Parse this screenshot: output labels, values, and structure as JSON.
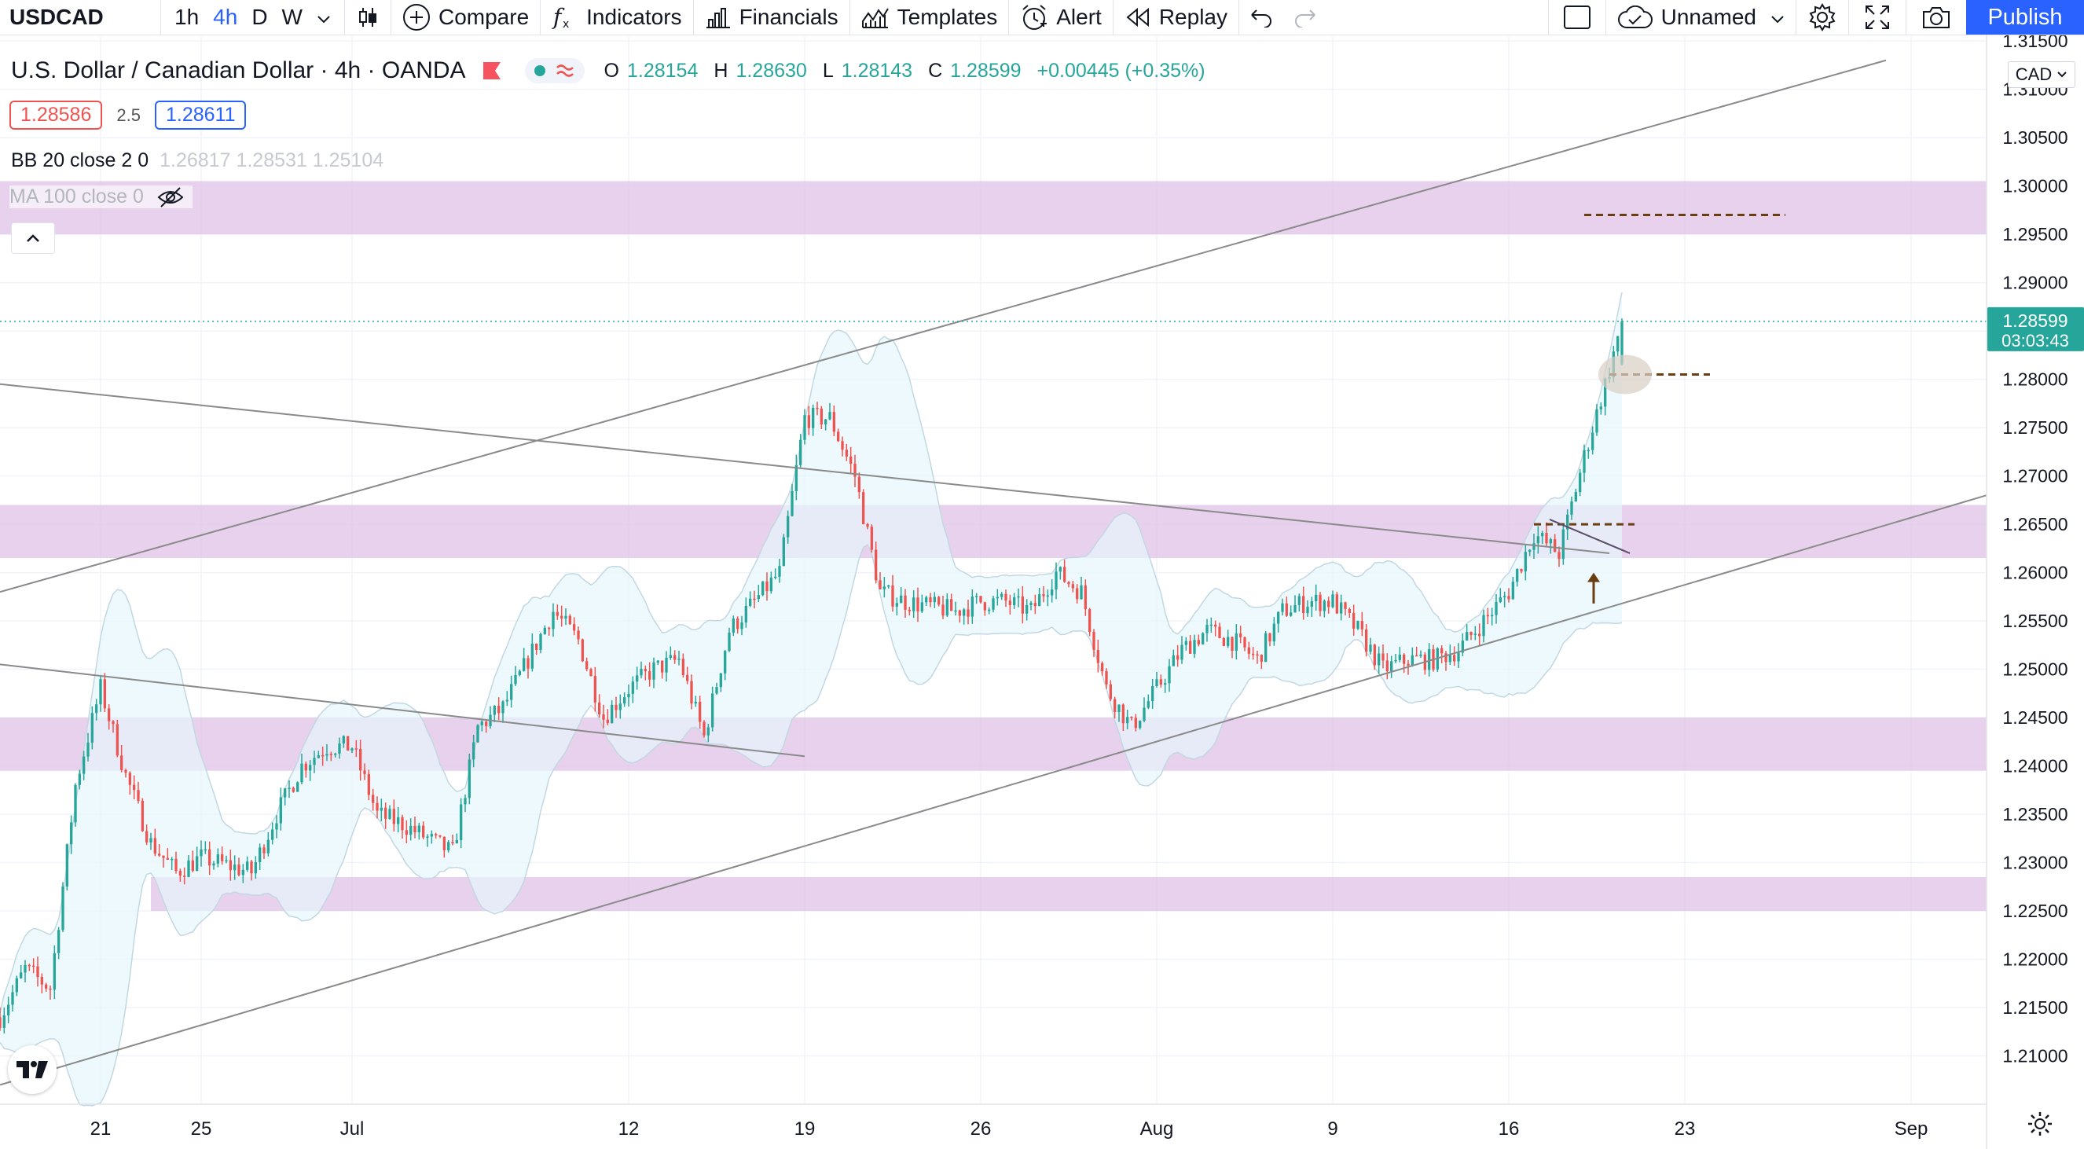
{
  "toolbar": {
    "symbol": "USDCAD",
    "timeframes": [
      "1h",
      "4h",
      "D",
      "W"
    ],
    "active_timeframe": "4h",
    "compare_label": "Compare",
    "indicators_label": "Indicators",
    "financials_label": "Financials",
    "templates_label": "Templates",
    "alert_label": "Alert",
    "replay_label": "Replay",
    "layout_name": "Unnamed",
    "publish_label": "Publish"
  },
  "legend": {
    "title": "U.S. Dollar / Canadian Dollar · 4h · OANDA",
    "ohlc": {
      "o_label": "O",
      "o": "1.28154",
      "h_label": "H",
      "h": "1.28630",
      "l_label": "L",
      "l": "1.28143",
      "c_label": "C",
      "c": "1.28599",
      "change": "+0.00445 (+0.35%)"
    },
    "bid": "1.28586",
    "spread": "2.5",
    "ask": "1.28611",
    "bb_label": "BB 20 close 2 0",
    "bb_values": "1.26817  1.28531  1.25104",
    "ma_label": "MA 100 close 0"
  },
  "price_axis": {
    "currency": "CAD",
    "last_price": "1.28599",
    "countdown": "03:03:43"
  },
  "colors": {
    "up": "#26a69a",
    "down": "#ef5350",
    "zone": "#e1c6e9",
    "trendline": "#8a8a8a",
    "level": "#6b3e12",
    "bb_fill": "#e6f7fb",
    "bb_line": "#c3d7e2",
    "accent": "#2962ff"
  },
  "icons": [
    "candles-icon",
    "compare-plus-icon",
    "fx-icon",
    "financials-icon",
    "templates-icon",
    "alert-icon",
    "replay-icon",
    "undo-icon",
    "redo-icon",
    "layout-icon",
    "cloud-icon",
    "settings-icon",
    "fullscreen-icon",
    "camera-icon",
    "eye-crossed-icon",
    "chevron-up-icon",
    "tradingview-logo-icon"
  ],
  "chart_data": {
    "type": "candlestick",
    "symbol": "USDCAD",
    "interval": "4h",
    "x_range": [
      "2021-06-17",
      "2021-09-04"
    ],
    "x_ticks": [
      {
        "label": "21",
        "date": "2021-06-21"
      },
      {
        "label": "25",
        "date": "2021-06-25"
      },
      {
        "label": "Jul",
        "date": "2021-07-01"
      },
      {
        "label": "12",
        "date": "2021-07-12"
      },
      {
        "label": "19",
        "date": "2021-07-19"
      },
      {
        "label": "26",
        "date": "2021-07-26"
      },
      {
        "label": "Aug",
        "date": "2021-08-02"
      },
      {
        "label": "9",
        "date": "2021-08-09"
      },
      {
        "label": "16",
        "date": "2021-08-16"
      },
      {
        "label": "23",
        "date": "2021-08-23"
      },
      {
        "label": "Sep",
        "date": "2021-09-01"
      }
    ],
    "y_range": [
      1.205,
      1.3155
    ],
    "y_ticks": [
      "1.31500",
      "1.31000",
      "1.30500",
      "1.30000",
      "1.29500",
      "1.29000",
      "1.28500",
      "1.28000",
      "1.27500",
      "1.27000",
      "1.26500",
      "1.26000",
      "1.25500",
      "1.25000",
      "1.24500",
      "1.24000",
      "1.23500",
      "1.23000",
      "1.22500",
      "1.22000",
      "1.21500",
      "1.21000"
    ],
    "close_path": [
      [
        "2021-06-17",
        1.214
      ],
      [
        "2021-06-18",
        1.219
      ],
      [
        "2021-06-19",
        1.217
      ],
      [
        "2021-06-20",
        1.238
      ],
      [
        "2021-06-21",
        1.248
      ],
      [
        "2021-06-22",
        1.239
      ],
      [
        "2021-06-23",
        1.232
      ],
      [
        "2021-06-24",
        1.229
      ],
      [
        "2021-06-25",
        1.2305
      ],
      [
        "2021-06-27",
        1.229
      ],
      [
        "2021-06-28",
        1.235
      ],
      [
        "2021-06-29",
        1.24
      ],
      [
        "2021-06-30",
        1.242
      ],
      [
        "2021-07-01",
        1.242
      ],
      [
        "2021-07-02",
        1.235
      ],
      [
        "2021-07-03",
        1.234
      ],
      [
        "2021-07-05",
        1.231
      ],
      [
        "2021-07-06",
        1.244
      ],
      [
        "2021-07-07",
        1.246
      ],
      [
        "2021-07-08",
        1.251
      ],
      [
        "2021-07-09",
        1.256
      ],
      [
        "2021-07-10",
        1.253
      ],
      [
        "2021-07-11",
        1.245
      ],
      [
        "2021-07-12",
        1.248
      ],
      [
        "2021-07-13",
        1.25
      ],
      [
        "2021-07-14",
        1.251
      ],
      [
        "2021-07-15",
        1.243
      ],
      [
        "2021-07-16",
        1.254
      ],
      [
        "2021-07-17",
        1.257
      ],
      [
        "2021-07-18",
        1.26
      ],
      [
        "2021-07-19",
        1.276
      ],
      [
        "2021-07-20",
        1.276
      ],
      [
        "2021-07-21",
        1.27
      ],
      [
        "2021-07-22",
        1.258
      ],
      [
        "2021-07-23",
        1.257
      ],
      [
        "2021-07-25",
        1.256
      ],
      [
        "2021-07-26",
        1.257
      ],
      [
        "2021-07-27",
        1.257
      ],
      [
        "2021-07-28",
        1.256
      ],
      [
        "2021-07-29",
        1.26
      ],
      [
        "2021-07-30",
        1.258
      ],
      [
        "2021-07-31",
        1.248
      ],
      [
        "2021-08-01",
        1.244
      ],
      [
        "2021-08-02",
        1.248
      ],
      [
        "2021-08-03",
        1.252
      ],
      [
        "2021-08-04",
        1.254
      ],
      [
        "2021-08-05",
        1.253
      ],
      [
        "2021-08-06",
        1.251
      ],
      [
        "2021-08-07",
        1.256
      ],
      [
        "2021-08-08",
        1.257
      ],
      [
        "2021-08-09",
        1.257
      ],
      [
        "2021-08-10",
        1.254
      ],
      [
        "2021-08-11",
        1.25
      ],
      [
        "2021-08-12",
        1.251
      ],
      [
        "2021-08-13",
        1.251
      ],
      [
        "2021-08-14",
        1.252
      ],
      [
        "2021-08-15",
        1.255
      ],
      [
        "2021-08-16",
        1.258
      ],
      [
        "2021-08-17",
        1.264
      ],
      [
        "2021-08-18",
        1.262
      ],
      [
        "2021-08-19",
        1.272
      ],
      [
        "2021-08-20",
        1.281
      ],
      [
        "2021-08-20T12:00",
        1.286
      ]
    ],
    "zones": [
      {
        "y1": 1.295,
        "y2": 1.3005,
        "from": "2021-06-17",
        "to": "2021-09-04"
      },
      {
        "y1": 1.2615,
        "y2": 1.267,
        "from": "2021-06-17",
        "to": "2021-09-04"
      },
      {
        "y1": 1.2395,
        "y2": 1.245,
        "from": "2021-06-17",
        "to": "2021-09-04"
      },
      {
        "y1": 1.225,
        "y2": 1.2285,
        "from": "2021-06-23",
        "to": "2021-09-04"
      }
    ],
    "trendlines": [
      {
        "from": [
          "2021-06-17",
          1.258
        ],
        "to": [
          "2021-08-31",
          1.313
        ]
      },
      {
        "from": [
          "2021-06-17",
          1.207
        ],
        "to": [
          "2021-09-04",
          1.268
        ]
      },
      {
        "from": [
          "2021-06-17",
          1.2795
        ],
        "to": [
          "2021-08-20",
          1.262
        ]
      },
      {
        "from": [
          "2021-06-17",
          1.2505
        ],
        "to": [
          "2021-07-19",
          1.241
        ]
      }
    ],
    "levels": [
      {
        "y": 1.297,
        "from": "2021-08-19",
        "to": "2021-08-27"
      },
      {
        "y": 1.2805,
        "from": "2021-08-20",
        "to": "2021-08-24"
      },
      {
        "y": 1.265,
        "from": "2021-08-17",
        "to": "2021-08-21"
      }
    ],
    "last_price": 1.28599,
    "ohlc_last": {
      "open": 1.28154,
      "high": 1.2863,
      "low": 1.28143,
      "close": 1.28599
    }
  }
}
